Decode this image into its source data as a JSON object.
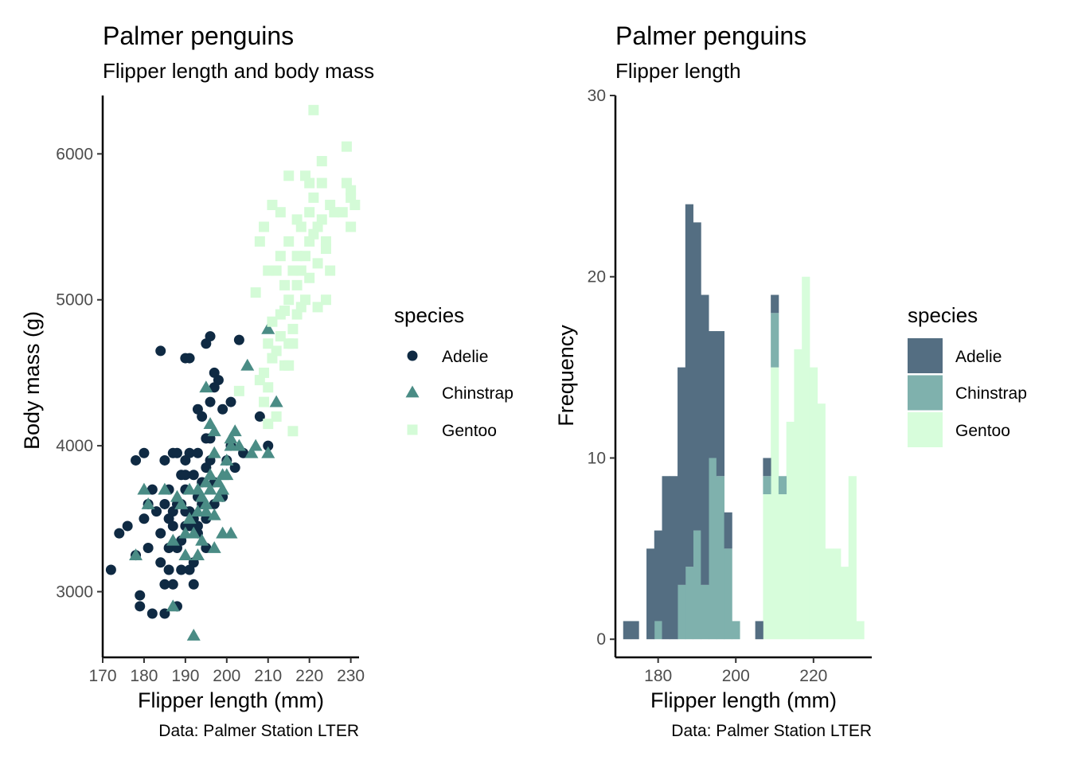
{
  "chart_data": [
    {
      "type": "scatter",
      "title": "Palmer penguins",
      "subtitle": "Flipper length and body mass",
      "xlabel": "Flipper length (mm)",
      "ylabel": "Body mass (g)",
      "caption": "Data: Palmer Station LTER",
      "xlim": [
        170,
        232
      ],
      "ylim": [
        2550,
        6400
      ],
      "xticks": [
        170,
        180,
        190,
        200,
        210,
        220,
        230
      ],
      "yticks": [
        3000,
        4000,
        5000,
        6000
      ],
      "grid": false,
      "legend": {
        "title": "species",
        "position": "right",
        "entries": [
          "Adelie",
          "Chinstrap",
          "Gentoo"
        ]
      },
      "colors": {
        "Adelie": "#0f2a43",
        "Chinstrap": "#4a8c85",
        "Gentoo": "#d4fbd7"
      },
      "series": [
        {
          "name": "Adelie",
          "marker": "circle",
          "points": [
            [
              172,
              3150
            ],
            [
              174,
              3400
            ],
            [
              176,
              3450
            ],
            [
              178,
              3250
            ],
            [
              178,
              3900
            ],
            [
              179,
              2900
            ],
            [
              179,
              2975
            ],
            [
              180,
              3950
            ],
            [
              180,
              3500
            ],
            [
              181,
              3600
            ],
            [
              181,
              3300
            ],
            [
              182,
              2850
            ],
            [
              182,
              3700
            ],
            [
              183,
              3550
            ],
            [
              184,
              4650
            ],
            [
              184,
              3200
            ],
            [
              184,
              3400
            ],
            [
              185,
              3600
            ],
            [
              185,
              3050
            ],
            [
              185,
              2850
            ],
            [
              185,
              3900
            ],
            [
              186,
              3150
            ],
            [
              186,
              3700
            ],
            [
              186,
              3300
            ],
            [
              187,
              3550
            ],
            [
              187,
              3450
            ],
            [
              187,
              3950
            ],
            [
              187,
              3050
            ],
            [
              188,
              3300
            ],
            [
              188,
              3600
            ],
            [
              188,
              2900
            ],
            [
              189,
              3800
            ],
            [
              189,
              3600
            ],
            [
              189,
              3150
            ],
            [
              189,
              3350
            ],
            [
              190,
              4600
            ],
            [
              190,
              3900
            ],
            [
              190,
              3450
            ],
            [
              190,
              3700
            ],
            [
              190,
              3800
            ],
            [
              191,
              4600
            ],
            [
              191,
              3550
            ],
            [
              191,
              3450
            ],
            [
              191,
              3950
            ],
            [
              191,
              3150
            ],
            [
              192,
              3500
            ],
            [
              192,
              3800
            ],
            [
              192,
              3200
            ],
            [
              192,
              3050
            ],
            [
              193,
              4250
            ],
            [
              193,
              3650
            ],
            [
              193,
              3450
            ],
            [
              193,
              3950
            ],
            [
              194,
              4200
            ],
            [
              194,
              3750
            ],
            [
              194,
              3600
            ],
            [
              195,
              4700
            ],
            [
              195,
              4050
            ],
            [
              195,
              3300
            ],
            [
              195,
              3850
            ],
            [
              196,
              4750
            ],
            [
              196,
              4300
            ],
            [
              196,
              4050
            ],
            [
              196,
              3900
            ],
            [
              197,
              4500
            ],
            [
              197,
              4400
            ],
            [
              197,
              3600
            ],
            [
              198,
              4450
            ],
            [
              199,
              4250
            ],
            [
              199,
              3650
            ],
            [
              200,
              3900
            ],
            [
              201,
              4000
            ],
            [
              202,
              3850
            ],
            [
              203,
              4725
            ],
            [
              204,
              3950
            ],
            [
              208,
              4200
            ],
            [
              210,
              4000
            ],
            [
              190,
              3550
            ],
            [
              188,
              3950
            ],
            [
              186,
              3500
            ],
            [
              193,
              3400
            ],
            [
              195,
              3500
            ],
            [
              197,
              3750
            ],
            [
              201,
              4300
            ]
          ]
        },
        {
          "name": "Chinstrap",
          "marker": "triangle",
          "points": [
            [
              178,
              3250
            ],
            [
              180,
              3700
            ],
            [
              181,
              3600
            ],
            [
              185,
              3700
            ],
            [
              187,
              2900
            ],
            [
              187,
              3350
            ],
            [
              188,
              3650
            ],
            [
              189,
              3600
            ],
            [
              190,
              3400
            ],
            [
              190,
              3250
            ],
            [
              191,
              3700
            ],
            [
              192,
              2700
            ],
            [
              192,
              3400
            ],
            [
              193,
              3550
            ],
            [
              193,
              3250
            ],
            [
              194,
              3350
            ],
            [
              194,
              3650
            ],
            [
              195,
              3600
            ],
            [
              195,
              3750
            ],
            [
              195,
              4400
            ],
            [
              196,
              3700
            ],
            [
              196,
              3800
            ],
            [
              196,
              4150
            ],
            [
              197,
              3525
            ],
            [
              197,
              3300
            ],
            [
              197,
              3950
            ],
            [
              198,
              3750
            ],
            [
              198,
              3650
            ],
            [
              199,
              3800
            ],
            [
              199,
              3400
            ],
            [
              200,
              3900
            ],
            [
              200,
              3800
            ],
            [
              201,
              4050
            ],
            [
              201,
              3400
            ],
            [
              201,
              4000
            ],
            [
              202,
              4100
            ],
            [
              203,
              4000
            ],
            [
              205,
              4550
            ],
            [
              206,
              3950
            ],
            [
              207,
              4000
            ],
            [
              210,
              4800
            ],
            [
              210,
              3950
            ],
            [
              212,
              4300
            ],
            [
              195,
              3550
            ],
            [
              193,
              3700
            ],
            [
              191,
              3500
            ],
            [
              199,
              3700
            ],
            [
              197,
              4100
            ]
          ]
        },
        {
          "name": "Gentoo",
          "marker": "square",
          "points": [
            [
              203,
              4375
            ],
            [
              207,
              5050
            ],
            [
              208,
              4450
            ],
            [
              209,
              4500
            ],
            [
              209,
              4300
            ],
            [
              210,
              4400
            ],
            [
              210,
              4700
            ],
            [
              210,
              4150
            ],
            [
              211,
              4600
            ],
            [
              211,
              4850
            ],
            [
              212,
              4650
            ],
            [
              212,
              5200
            ],
            [
              212,
              4200
            ],
            [
              213,
              4750
            ],
            [
              213,
              5300
            ],
            [
              213,
              4900
            ],
            [
              214,
              4550
            ],
            [
              214,
              4925
            ],
            [
              214,
              5100
            ],
            [
              215,
              4700
            ],
            [
              215,
              5000
            ],
            [
              215,
              5400
            ],
            [
              215,
              4550
            ],
            [
              216,
              4800
            ],
            [
              216,
              5200
            ],
            [
              216,
              4700
            ],
            [
              216,
              4100
            ],
            [
              217,
              5300
            ],
            [
              217,
              4900
            ],
            [
              217,
              5550
            ],
            [
              218,
              5200
            ],
            [
              218,
              5500
            ],
            [
              218,
              4950
            ],
            [
              219,
              5300
            ],
            [
              219,
              5000
            ],
            [
              220,
              5400
            ],
            [
              220,
              5600
            ],
            [
              220,
              5150
            ],
            [
              220,
              5800
            ],
            [
              221,
              6300
            ],
            [
              221,
              5450
            ],
            [
              221,
              5700
            ],
            [
              222,
              5250
            ],
            [
              222,
              5500
            ],
            [
              222,
              4950
            ],
            [
              223,
              5550
            ],
            [
              223,
              5950
            ],
            [
              223,
              5800
            ],
            [
              224,
              5400
            ],
            [
              224,
              5350
            ],
            [
              225,
              5650
            ],
            [
              225,
              5200
            ],
            [
              226,
              5600
            ],
            [
              228,
              5600
            ],
            [
              229,
              6050
            ],
            [
              229,
              5800
            ],
            [
              230,
              5700
            ],
            [
              230,
              5500
            ],
            [
              230,
              5750
            ],
            [
              231,
              5650
            ],
            [
              215,
              5850
            ],
            [
              219,
              5850
            ],
            [
              211,
              5650
            ],
            [
              213,
              5600
            ],
            [
              209,
              5500
            ],
            [
              208,
              5400
            ],
            [
              210,
              5200
            ],
            [
              217,
              5100
            ],
            [
              224,
              5000
            ]
          ]
        }
      ]
    },
    {
      "type": "bar",
      "subtype": "histogram",
      "title": "Palmer penguins",
      "subtitle": "Flipper length",
      "xlabel": "Flipper length (mm)",
      "ylabel": "Frequency",
      "caption": "Data: Palmer Station LTER",
      "stacked": true,
      "bin_width": 2,
      "bin_starts": [
        171,
        173,
        175,
        177,
        179,
        181,
        183,
        185,
        187,
        189,
        191,
        193,
        195,
        197,
        199,
        201,
        203,
        205,
        207,
        209,
        211,
        213,
        215,
        217,
        219,
        221,
        223,
        225,
        227,
        229,
        231
      ],
      "xlim": [
        169,
        235
      ],
      "ylim": [
        -1,
        30
      ],
      "xticks": [
        180,
        200,
        220
      ],
      "yticks": [
        0,
        10,
        20,
        30
      ],
      "grid": false,
      "legend": {
        "title": "species",
        "position": "right",
        "entries": [
          "Adelie",
          "Chinstrap",
          "Gentoo"
        ]
      },
      "colors": {
        "Adelie": "#546e82",
        "Chinstrap": "#7fb1ad",
        "Gentoo": "#d7fddb"
      },
      "series": [
        {
          "name": "Gentoo",
          "values": [
            0,
            0,
            0,
            0,
            0,
            0,
            0,
            0,
            0,
            0,
            0,
            0,
            0,
            0,
            0,
            0,
            0,
            0,
            8,
            15,
            8,
            12,
            16,
            20,
            15,
            13,
            5,
            5,
            4,
            9,
            1
          ]
        },
        {
          "name": "Chinstrap",
          "values": [
            0,
            0,
            0,
            0,
            1,
            0,
            0,
            3,
            4,
            6,
            3,
            10,
            9,
            5,
            1,
            0,
            0,
            0,
            1,
            3,
            1,
            0,
            0,
            0,
            0,
            0,
            0,
            0,
            0,
            0,
            0
          ]
        },
        {
          "name": "Adelie",
          "values": [
            1,
            1,
            0,
            5,
            5,
            9,
            9,
            12,
            20,
            17,
            16,
            7,
            8,
            2,
            0,
            0,
            0,
            1,
            1,
            1,
            0,
            0,
            0,
            0,
            0,
            0,
            0,
            0,
            0,
            0,
            0
          ]
        }
      ]
    }
  ]
}
